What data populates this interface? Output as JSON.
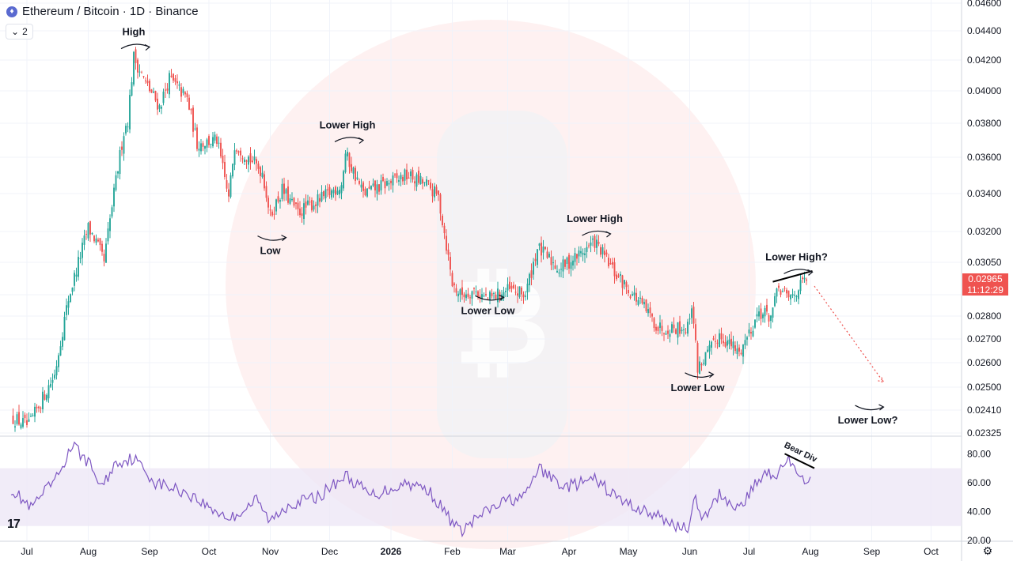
{
  "header": {
    "symbol_icon": "ethereum-icon",
    "title": "Ethereum / Bitcoin · 1D · Binance",
    "collapse_count": "2"
  },
  "price_tag": {
    "price": "0.02965",
    "countdown": "11:12:29"
  },
  "colors": {
    "up": "#26a69a",
    "down": "#ef5350",
    "rsi_line": "#7e57c2",
    "rsi_band": "#ede7f6",
    "watermark": "#fdecec"
  },
  "chart_data": [
    {
      "type": "candlestick",
      "title": "Ethereum / Bitcoin · 1D · Binance",
      "y_ticks": [
        "0.04600",
        "0.04400",
        "0.04200",
        "0.04000",
        "0.03800",
        "0.03600",
        "0.03400",
        "0.03200",
        "0.03050",
        "0.02900",
        "0.02800",
        "0.02700",
        "0.02600",
        "0.02500",
        "0.02410",
        "0.02325"
      ],
      "x_ticks": [
        "Jul",
        "Aug",
        "Sep",
        "Oct",
        "Nov",
        "Dec",
        "2026",
        "Feb",
        "Mar",
        "Apr",
        "May",
        "Jun",
        "Jul",
        "Aug",
        "Sep",
        "Oct"
      ],
      "key_points": [
        {
          "date": "2025-06-24",
          "price": 0.0238
        },
        {
          "date": "2025-07-02",
          "price": 0.0235
        },
        {
          "date": "2025-07-15",
          "price": 0.0255
        },
        {
          "date": "2025-07-22",
          "price": 0.0288
        },
        {
          "date": "2025-08-01",
          "price": 0.0322
        },
        {
          "date": "2025-08-05",
          "price": 0.0315
        },
        {
          "date": "2025-08-09",
          "price": 0.0305
        },
        {
          "date": "2025-08-14",
          "price": 0.034
        },
        {
          "date": "2025-08-19",
          "price": 0.0375
        },
        {
          "date": "2025-08-21",
          "price": 0.0382
        },
        {
          "date": "2025-08-24",
          "price": 0.0422
        },
        {
          "date": "2025-08-30",
          "price": 0.0405
        },
        {
          "date": "2025-09-06",
          "price": 0.039
        },
        {
          "date": "2025-09-11",
          "price": 0.0408
        },
        {
          "date": "2025-09-20",
          "price": 0.0395
        },
        {
          "date": "2025-09-25",
          "price": 0.0368
        },
        {
          "date": "2025-10-05",
          "price": 0.037
        },
        {
          "date": "2025-10-11",
          "price": 0.0337
        },
        {
          "date": "2025-10-14",
          "price": 0.0368
        },
        {
          "date": "2025-10-28",
          "price": 0.0352
        },
        {
          "date": "2025-11-01",
          "price": 0.0328
        },
        {
          "date": "2025-11-07",
          "price": 0.0342
        },
        {
          "date": "2025-11-15",
          "price": 0.033
        },
        {
          "date": "2025-11-28",
          "price": 0.0338
        },
        {
          "date": "2025-12-07",
          "price": 0.0345
        },
        {
          "date": "2025-12-09",
          "price": 0.0362
        },
        {
          "date": "2025-12-18",
          "price": 0.034
        },
        {
          "date": "2025-12-29",
          "price": 0.0345
        },
        {
          "date": "2026-01-09",
          "price": 0.035
        },
        {
          "date": "2026-01-19",
          "price": 0.0345
        },
        {
          "date": "2026-01-25",
          "price": 0.0338
        },
        {
          "date": "2026-02-01",
          "price": 0.0295
        },
        {
          "date": "2026-02-05",
          "price": 0.029
        },
        {
          "date": "2026-02-12",
          "price": 0.0292
        },
        {
          "date": "2026-02-19",
          "price": 0.0288
        },
        {
          "date": "2026-03-01",
          "price": 0.0292
        },
        {
          "date": "2026-03-10",
          "price": 0.029
        },
        {
          "date": "2026-03-16",
          "price": 0.0312
        },
        {
          "date": "2026-03-27",
          "price": 0.0302
        },
        {
          "date": "2026-04-05",
          "price": 0.0308
        },
        {
          "date": "2026-04-14",
          "price": 0.0315
        },
        {
          "date": "2026-04-24",
          "price": 0.03
        },
        {
          "date": "2026-05-08",
          "price": 0.0285
        },
        {
          "date": "2026-05-16",
          "price": 0.0275
        },
        {
          "date": "2026-05-31",
          "price": 0.0275
        },
        {
          "date": "2026-06-02",
          "price": 0.0286
        },
        {
          "date": "2026-06-05",
          "price": 0.0258
        },
        {
          "date": "2026-06-12",
          "price": 0.0266
        },
        {
          "date": "2026-06-16",
          "price": 0.0272
        },
        {
          "date": "2026-06-26",
          "price": 0.0264
        },
        {
          "date": "2026-07-06",
          "price": 0.0282
        },
        {
          "date": "2026-07-12",
          "price": 0.028
        },
        {
          "date": "2026-07-16",
          "price": 0.0293
        },
        {
          "date": "2026-07-21",
          "price": 0.0288
        },
        {
          "date": "2026-07-30",
          "price": 0.0297
        }
      ],
      "last_price": 0.02965,
      "annotations": [
        {
          "text": "High",
          "date": "2025-08-24",
          "price": 0.0437,
          "pos": "above"
        },
        {
          "text": "Low",
          "date": "2025-11-01",
          "price": 0.0309,
          "pos": "below"
        },
        {
          "text": "Lower High",
          "date": "2025-12-10",
          "price": 0.0377,
          "pos": "above"
        },
        {
          "text": "Lower Low",
          "date": "2026-02-19",
          "price": 0.0281,
          "pos": "below"
        },
        {
          "text": "Lower High",
          "date": "2026-04-14",
          "price": 0.0325,
          "pos": "above"
        },
        {
          "text": "Lower Low",
          "date": "2026-06-05",
          "price": 0.02485,
          "pos": "below"
        },
        {
          "text": "Lower High?",
          "date": "2026-07-25",
          "price": 0.0306,
          "pos": "above"
        },
        {
          "text": "Lower Low?",
          "date": "2026-08-30",
          "price": 0.0236,
          "pos": "below"
        }
      ],
      "trendline": {
        "from": {
          "date": "2026-07-13",
          "price": 0.0296
        },
        "to": {
          "date": "2026-08-02",
          "price": 0.0301
        }
      },
      "projection": {
        "from": {
          "date": "2026-08-03",
          "price": 0.0294
        },
        "to": {
          "date": "2026-09-07",
          "price": 0.0252
        }
      },
      "ylim": [
        0.02325,
        0.046
      ],
      "grid": true
    },
    {
      "type": "line",
      "title": "",
      "y_ticks": [
        "80.00",
        "60.00",
        "40.00",
        "20.00"
      ],
      "band": [
        30,
        70
      ],
      "ylim": [
        20,
        90
      ],
      "rsi_key": [
        {
          "date": "2025-06-23",
          "value": 56
        },
        {
          "date": "2025-07-03",
          "value": 42
        },
        {
          "date": "2025-07-16",
          "value": 63
        },
        {
          "date": "2025-07-24",
          "value": 86
        },
        {
          "date": "2025-08-01",
          "value": 74
        },
        {
          "date": "2025-08-08",
          "value": 57
        },
        {
          "date": "2025-08-15",
          "value": 74
        },
        {
          "date": "2025-08-24",
          "value": 77
        },
        {
          "date": "2025-09-04",
          "value": 60
        },
        {
          "date": "2025-09-20",
          "value": 53
        },
        {
          "date": "2025-10-01",
          "value": 43
        },
        {
          "date": "2025-10-12",
          "value": 35
        },
        {
          "date": "2025-10-25",
          "value": 48
        },
        {
          "date": "2025-11-01",
          "value": 33
        },
        {
          "date": "2025-11-10",
          "value": 45
        },
        {
          "date": "2025-11-25",
          "value": 50
        },
        {
          "date": "2025-12-09",
          "value": 65
        },
        {
          "date": "2025-12-22",
          "value": 51
        },
        {
          "date": "2026-01-09",
          "value": 60
        },
        {
          "date": "2026-01-20",
          "value": 55
        },
        {
          "date": "2026-01-29",
          "value": 38
        },
        {
          "date": "2026-02-05",
          "value": 26
        },
        {
          "date": "2026-02-16",
          "value": 38
        },
        {
          "date": "2026-03-01",
          "value": 48
        },
        {
          "date": "2026-03-10",
          "value": 50
        },
        {
          "date": "2026-03-16",
          "value": 70
        },
        {
          "date": "2026-03-30",
          "value": 57
        },
        {
          "date": "2026-04-14",
          "value": 62
        },
        {
          "date": "2026-04-28",
          "value": 47
        },
        {
          "date": "2026-05-15",
          "value": 37
        },
        {
          "date": "2026-05-31",
          "value": 27
        },
        {
          "date": "2026-06-03",
          "value": 52
        },
        {
          "date": "2026-06-07",
          "value": 32
        },
        {
          "date": "2026-06-16",
          "value": 52
        },
        {
          "date": "2026-06-26",
          "value": 42
        },
        {
          "date": "2026-07-09",
          "value": 68
        },
        {
          "date": "2026-07-16",
          "value": 66
        },
        {
          "date": "2026-07-20",
          "value": 78
        },
        {
          "date": "2026-07-26",
          "value": 62
        },
        {
          "date": "2026-08-01",
          "value": 64
        }
      ],
      "annotation": {
        "text": "Bear Div",
        "from": {
          "date": "2026-07-19",
          "value": 80
        },
        "to": {
          "date": "2026-08-03",
          "value": 70
        }
      }
    }
  ]
}
